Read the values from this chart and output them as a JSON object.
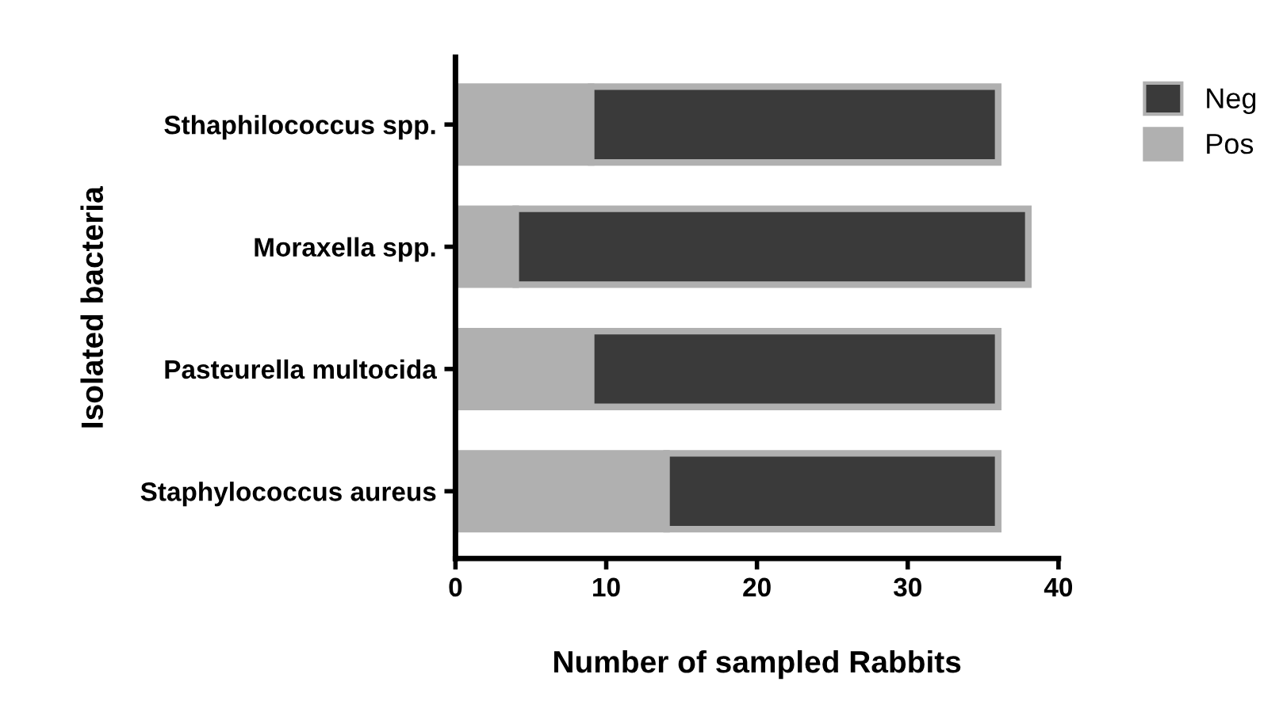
{
  "chart_data": {
    "type": "bar",
    "orientation": "horizontal",
    "stacked": true,
    "categories": [
      "Sthaphilococcus spp.",
      "Moraxella spp.",
      "Pasteurella multocida",
      "Staphylococcus aureus"
    ],
    "series": [
      {
        "name": "Pos",
        "color": "#b0b0b0",
        "values": [
          9,
          4,
          9,
          14
        ]
      },
      {
        "name": "Neg",
        "color": "#3a3a3a",
        "values": [
          27,
          34,
          27,
          22
        ]
      }
    ],
    "xlim": [
      0,
      40
    ],
    "xticks": [
      0,
      10,
      20,
      30,
      40
    ],
    "xlabel": "Number of sampled Rabbits",
    "ylabel": "Isolated bacteria",
    "legend": "top right",
    "grid": false
  }
}
